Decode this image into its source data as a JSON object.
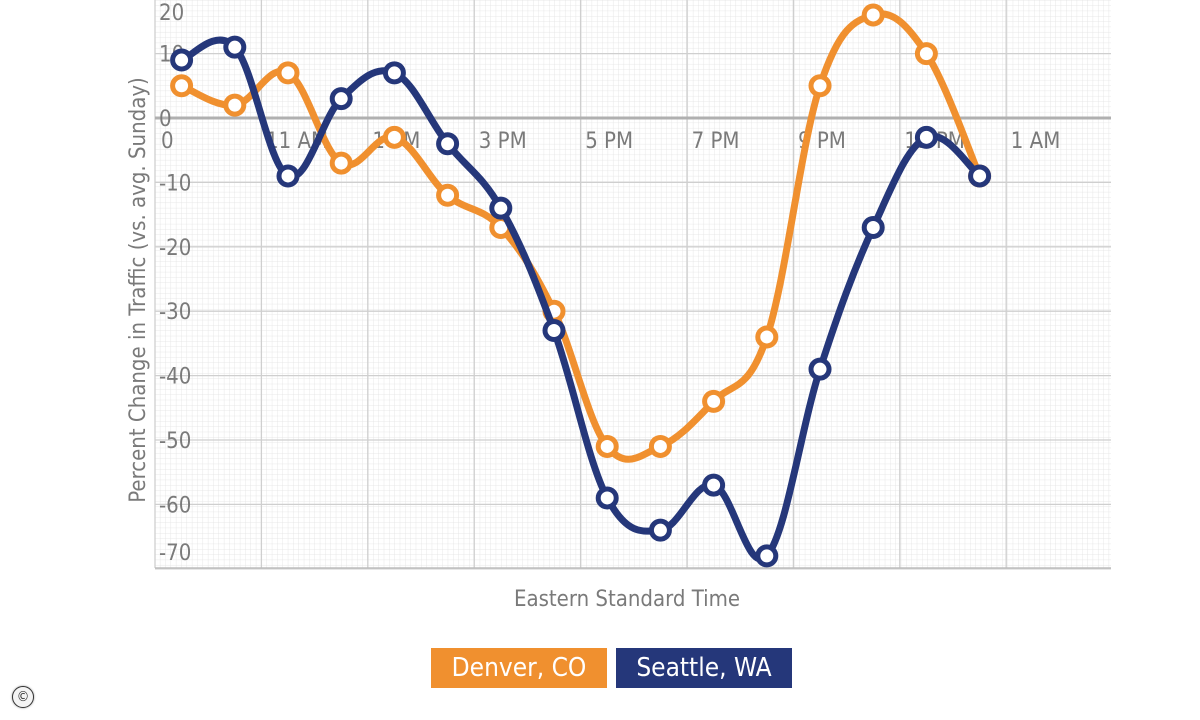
{
  "chart_data": {
    "type": "line",
    "ylabel": "Percent Change in Traffic (vs. avg. Sunday)",
    "xlabel": "Eastern Standard Time",
    "ylim": [
      -70,
      20
    ],
    "y_ticks": [
      20,
      10,
      0,
      -10,
      -20,
      -30,
      -40,
      -50,
      -60,
      -70
    ],
    "x_ticks": [
      "0",
      "11 AM",
      "1 PM",
      "3 PM",
      "5 PM",
      "7 PM",
      "9 PM",
      "11 PM",
      "1 AM"
    ],
    "x": [
      9.5,
      10.5,
      11.5,
      12.5,
      13.5,
      14.5,
      15.5,
      16.5,
      17.5,
      18.5,
      19.5,
      20.5,
      21.5,
      22.5,
      23.5,
      24.5
    ],
    "series": [
      {
        "name": "Denver, CO",
        "color": "#f0902f",
        "values": [
          5,
          2,
          7,
          -7,
          -3,
          -12,
          -17,
          -30,
          -51,
          -51,
          -44,
          -34,
          5,
          16,
          10,
          -9
        ]
      },
      {
        "name": "Seattle, WA",
        "color": "#25377a",
        "values": [
          9,
          11,
          -9,
          3,
          7,
          -4,
          -14,
          -33,
          -59,
          -64,
          -57,
          -68,
          -39,
          -17,
          -3,
          -9
        ]
      }
    ],
    "grid": true,
    "legend": "bottom"
  },
  "copyright_symbol": "©"
}
